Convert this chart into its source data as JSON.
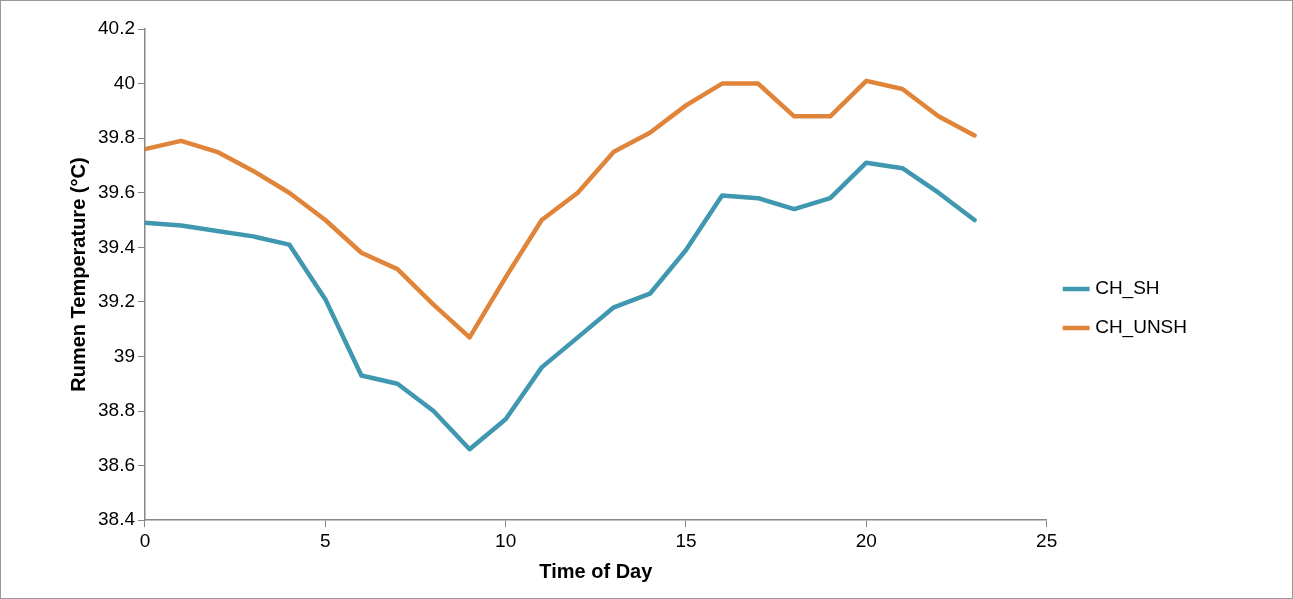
{
  "chart_data": {
    "type": "line",
    "xlabel": "Time of Day",
    "ylabel": "Rumen Temperature (°C)",
    "x": [
      0,
      1,
      2,
      3,
      4,
      5,
      6,
      7,
      8,
      9,
      10,
      11,
      12,
      13,
      14,
      15,
      16,
      17,
      18,
      19,
      20,
      21,
      22,
      23
    ],
    "series": [
      {
        "name": "CH_SH",
        "color": "#3f97b0",
        "values": [
          39.49,
          39.48,
          39.46,
          39.44,
          39.41,
          39.21,
          38.93,
          38.9,
          38.8,
          38.66,
          38.77,
          38.96,
          39.07,
          39.18,
          39.23,
          39.39,
          39.59,
          39.58,
          39.54,
          39.58,
          39.71,
          39.69,
          39.6,
          39.5
        ]
      },
      {
        "name": "CH_UNSH",
        "color": "#e0843a",
        "values": [
          39.76,
          39.79,
          39.75,
          39.68,
          39.6,
          39.5,
          39.38,
          39.32,
          39.19,
          39.07,
          39.29,
          39.5,
          39.6,
          39.75,
          39.82,
          39.92,
          40.0,
          40.0,
          39.88,
          39.88,
          40.01,
          39.98,
          39.88,
          39.81
        ]
      }
    ],
    "xlim": [
      0,
      25
    ],
    "xticks": [
      0,
      5,
      10,
      15,
      20,
      25
    ],
    "ylim": [
      38.4,
      40.2
    ],
    "yticks": [
      38.4,
      38.6,
      38.8,
      39,
      39.2,
      39.4,
      39.6,
      39.8,
      40,
      40.2
    ],
    "grid": false,
    "legend": "right",
    "marker": "none",
    "line_style": "solid"
  }
}
